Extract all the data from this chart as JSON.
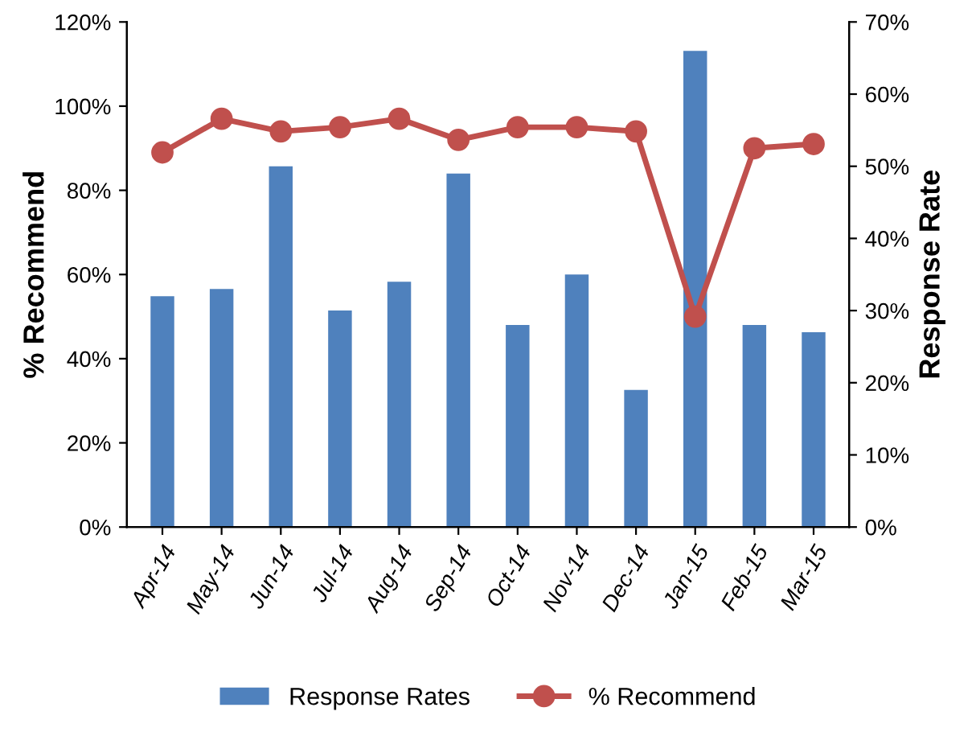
{
  "chart_data": {
    "type": "bar",
    "categories": [
      "Apr-14",
      "May-14",
      "Jun-14",
      "Jul-14",
      "Aug-14",
      "Sep-14",
      "Oct-14",
      "Nov-14",
      "Dec-14",
      "Jan-15",
      "Feb-15",
      "Mar-15"
    ],
    "ylabel": "% Recommend",
    "y2label": "Response Rate",
    "series": [
      {
        "name": "Response Rates",
        "axis": "y2",
        "color": "#4f81bd",
        "values": [
          32,
          33,
          50,
          30,
          34,
          49,
          28,
          35,
          19,
          66,
          28,
          27
        ]
      },
      {
        "name": "% Recommend",
        "type": "line",
        "axis": "y",
        "color": "#c0504d",
        "marker": "circle",
        "values": [
          89,
          97,
          94,
          95,
          97,
          92,
          95,
          95,
          94,
          50,
          90,
          91
        ]
      }
    ],
    "ylim": [
      0,
      120
    ],
    "yticks": [
      {
        "value": 0,
        "label": "0%"
      },
      {
        "value": 20,
        "label": "20%"
      },
      {
        "value": 40,
        "label": "40%"
      },
      {
        "value": 60,
        "label": "60%"
      },
      {
        "value": 80,
        "label": "80%"
      },
      {
        "value": 100,
        "label": "100%"
      },
      {
        "value": 120,
        "label": "120%"
      }
    ],
    "y2lim": [
      0,
      70
    ],
    "y2ticks": [
      {
        "value": 0,
        "label": "0%"
      },
      {
        "value": 10,
        "label": "10%"
      },
      {
        "value": 20,
        "label": "20%"
      },
      {
        "value": 30,
        "label": "30%"
      },
      {
        "value": 40,
        "label": "40%"
      },
      {
        "value": 50,
        "label": "50%"
      },
      {
        "value": 60,
        "label": "60%"
      },
      {
        "value": 70,
        "label": "70%"
      }
    ],
    "legend": "bottom",
    "grid": false
  }
}
